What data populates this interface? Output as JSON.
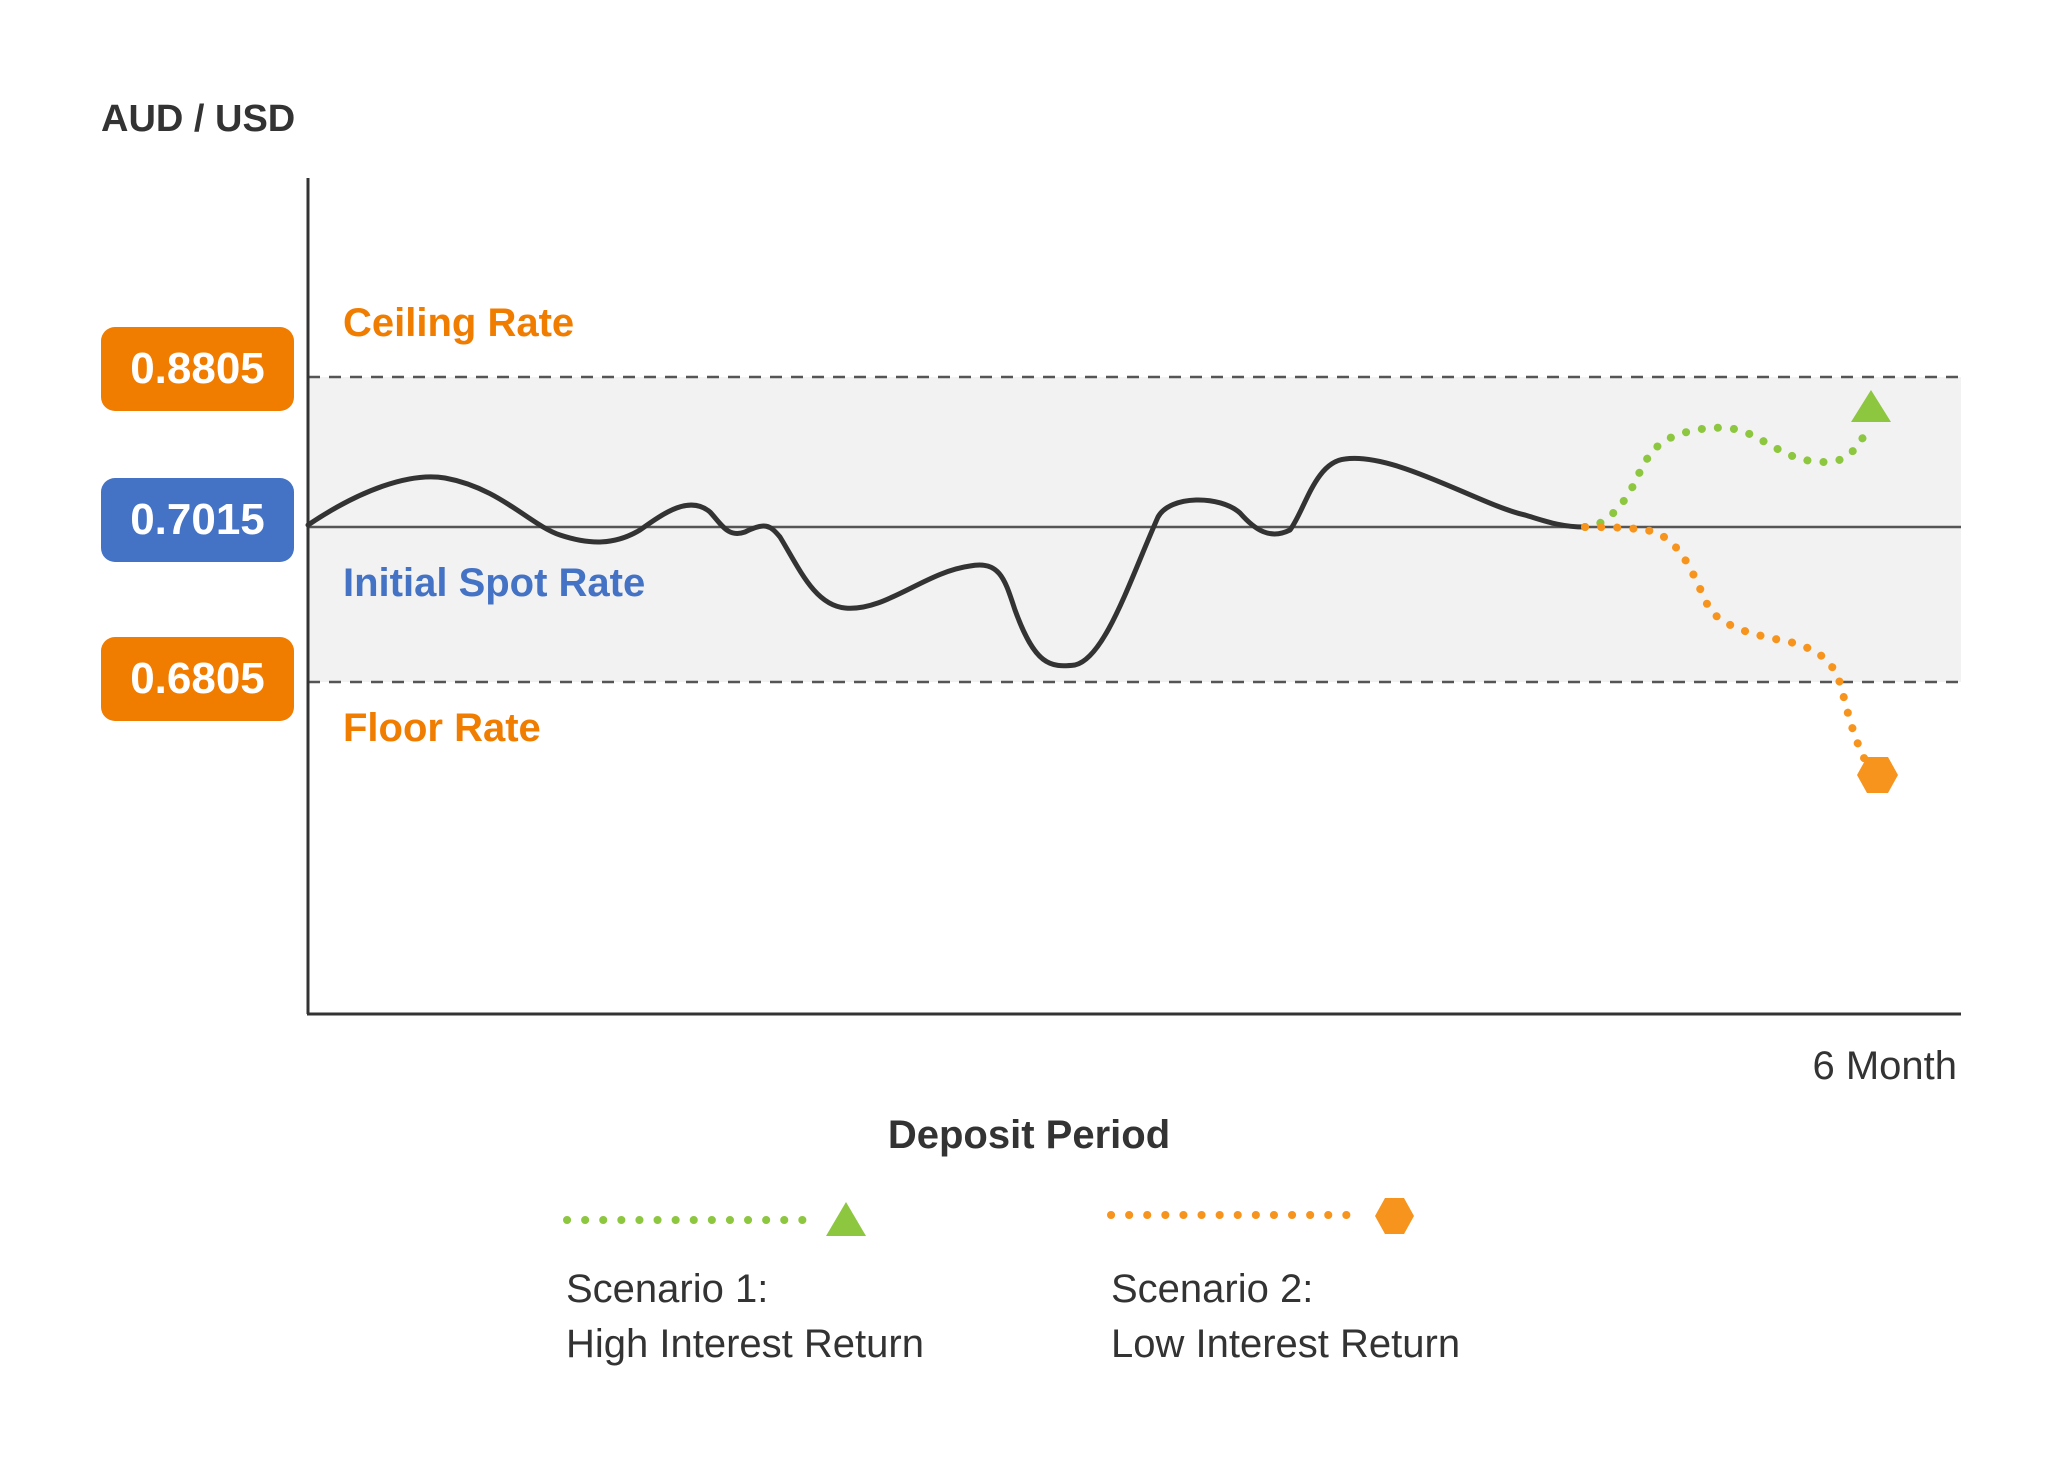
{
  "colors": {
    "ceiling": "#f07c00",
    "floor": "#f07c00",
    "spot": "#4472c4",
    "scenario1": "#8dc63f",
    "scenario2": "#f7941d",
    "line": "#333333",
    "band": "#f2f2f2"
  },
  "chart_data": {
    "type": "line",
    "ylabel": "AUD / USD",
    "xlabel": "Deposit Period",
    "x_tick_labels": [
      "6 Month"
    ],
    "reference_lines": [
      {
        "name": "Ceiling Rate",
        "value": 0.8805,
        "style": "dashed"
      },
      {
        "name": "Initial Spot Rate",
        "value": 0.7015,
        "style": "solid"
      },
      {
        "name": "Floor Rate",
        "value": 0.6805,
        "style": "dashed"
      }
    ],
    "badges": {
      "ceiling": "0.8805",
      "spot": "0.7015",
      "floor": "0.6805"
    },
    "series": [
      {
        "name": "AUD / USD",
        "style": "solid"
      },
      {
        "name": "Scenario 1: High Interest Return",
        "style": "dotted",
        "marker": "triangle"
      },
      {
        "name": "Scenario 2: Low Interest Return",
        "style": "dotted",
        "marker": "hexagon"
      }
    ],
    "shaded_band": "between floor and ceiling",
    "grid": false
  },
  "labels": {
    "ceiling": "Ceiling Rate",
    "spot": "Initial Spot Rate",
    "floor": "Floor Rate"
  },
  "legend": {
    "scenario1_line1": "Scenario 1:",
    "scenario1_line2": "High Interest Return",
    "scenario2_line1": "Scenario 2:",
    "scenario2_line2": "Low Interest Return"
  }
}
